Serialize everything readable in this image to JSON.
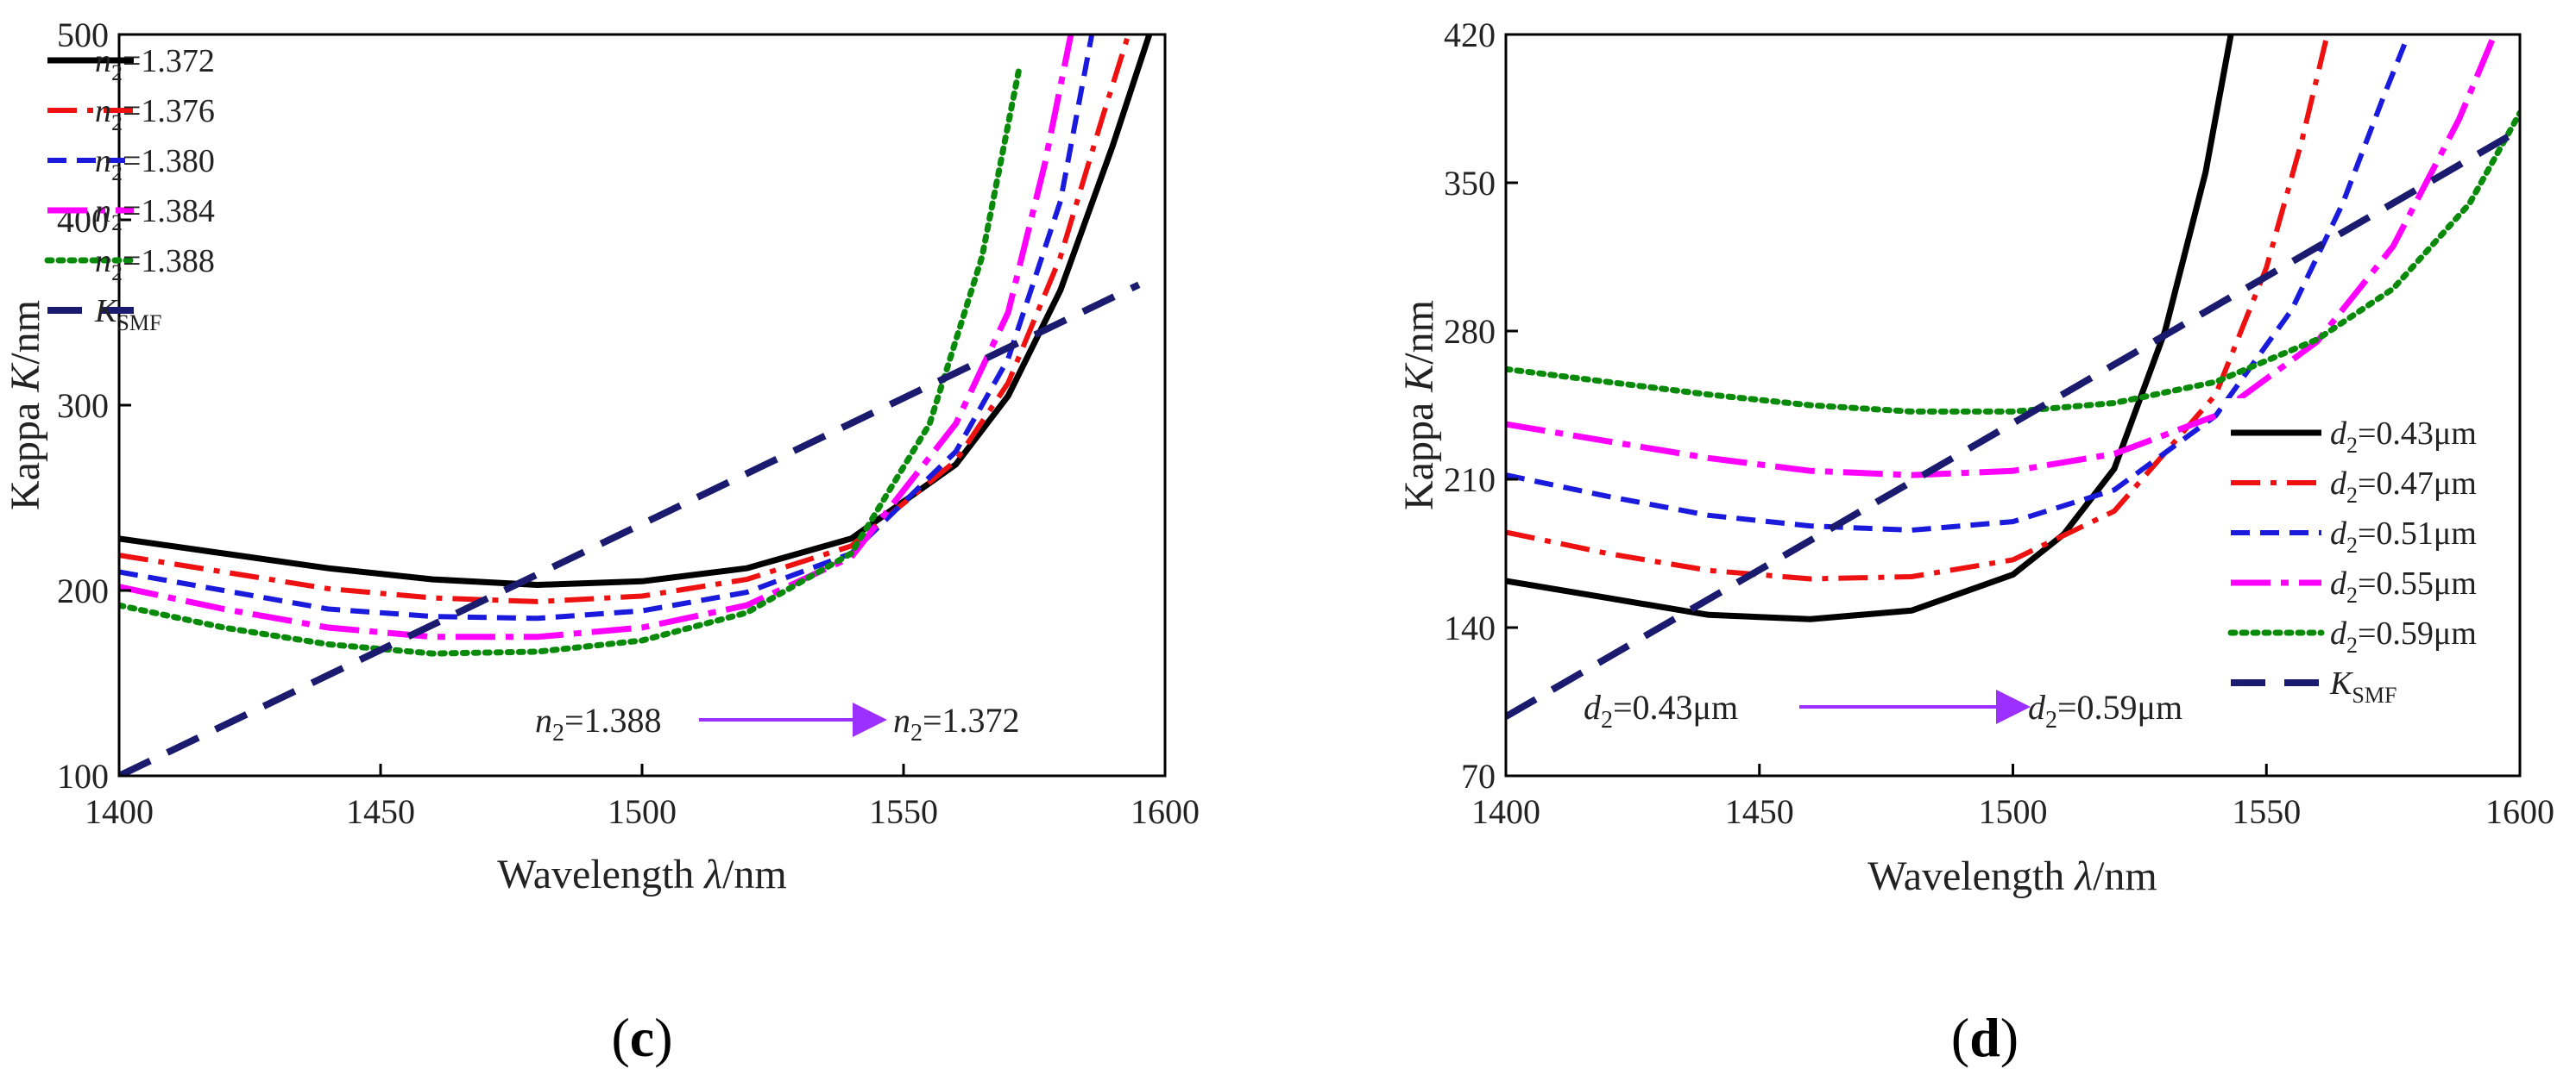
{
  "figure": {
    "panels": [
      {
        "label": "c",
        "note": {
          "from": "=1.388",
          "to": "=1.372",
          "symbol": "n",
          "sub": "2"
        }
      },
      {
        "label": "d",
        "note": {
          "from": "=0.43μm",
          "to": "=0.59μm",
          "symbol": "d",
          "sub": "2"
        }
      }
    ]
  },
  "colors": {
    "black": "#000000",
    "red": "#ee1111",
    "blue": "#1a1adc",
    "magenta": "#ff00ff",
    "green": "#0a8a0a",
    "navy": "#1a1a6e",
    "arrow": "#9b30ff"
  },
  "chart_data": [
    {
      "type": "line",
      "title": "",
      "xlabel": "Wavelength λ/nm",
      "ylabel": "Kappa K/nm",
      "xlim": [
        1400,
        1600
      ],
      "ylim": [
        100,
        500
      ],
      "xticks": [
        1400,
        1450,
        1500,
        1550,
        1600
      ],
      "yticks": [
        100,
        200,
        300,
        400,
        500
      ],
      "legend_position": "top-left",
      "series": [
        {
          "name": "n2=1.372",
          "symbol": "n",
          "sub": "2",
          "value": "=1.372",
          "color": "#000000",
          "style": "solid",
          "x": [
            1400,
            1420,
            1440,
            1460,
            1480,
            1500,
            1520,
            1540,
            1560,
            1570,
            1580,
            1590,
            1597
          ],
          "y": [
            228,
            220,
            212,
            206,
            203,
            205,
            212,
            228,
            268,
            305,
            362,
            440,
            500
          ]
        },
        {
          "name": "n2=1.376",
          "symbol": "n",
          "sub": "2",
          "value": "=1.376",
          "color": "#ee1111",
          "style": "dashdot",
          "x": [
            1400,
            1420,
            1440,
            1460,
            1480,
            1500,
            1520,
            1540,
            1560,
            1570,
            1580,
            1588,
            1593
          ],
          "y": [
            219,
            210,
            201,
            196,
            194,
            197,
            206,
            224,
            270,
            312,
            380,
            455,
            500
          ]
        },
        {
          "name": "n2=1.380",
          "symbol": "n",
          "sub": "2",
          "value": "=1.380",
          "color": "#1a1adc",
          "style": "dash",
          "x": [
            1400,
            1420,
            1440,
            1460,
            1480,
            1500,
            1520,
            1540,
            1560,
            1570,
            1580,
            1586
          ],
          "y": [
            210,
            200,
            190,
            186,
            185,
            189,
            199,
            220,
            275,
            325,
            410,
            500
          ]
        },
        {
          "name": "n2=1.384",
          "symbol": "n",
          "sub": "2",
          "value": "=1.384",
          "color": "#ff00ff",
          "style": "longdashdot",
          "x": [
            1400,
            1420,
            1440,
            1460,
            1480,
            1500,
            1520,
            1540,
            1560,
            1570,
            1577,
            1582
          ],
          "y": [
            202,
            190,
            180,
            175,
            175,
            180,
            192,
            218,
            290,
            350,
            430,
            500
          ]
        },
        {
          "name": "n2=1.388",
          "symbol": "n",
          "sub": "2",
          "value": "=1.388",
          "color": "#0a8a0a",
          "style": "dot",
          "x": [
            1400,
            1420,
            1440,
            1460,
            1480,
            1500,
            1520,
            1540,
            1555,
            1565,
            1572
          ],
          "y": [
            192,
            180,
            171,
            166,
            167,
            173,
            188,
            220,
            290,
            380,
            480
          ]
        },
        {
          "name": "KSMF",
          "symbol": "K",
          "sub": "SMF",
          "value": "",
          "color": "#1a1a6e",
          "style": "longdash",
          "x": [
            1400,
            1595
          ],
          "y": [
            100,
            365
          ]
        }
      ]
    },
    {
      "type": "line",
      "title": "",
      "xlabel": "Wavelength λ/nm",
      "ylabel": "Kappa K/nm",
      "xlim": [
        1400,
        1600
      ],
      "ylim": [
        70,
        420
      ],
      "xticks": [
        1400,
        1450,
        1500,
        1550,
        1600
      ],
      "yticks": [
        70,
        140,
        210,
        280,
        350,
        420
      ],
      "legend_position": "right",
      "series": [
        {
          "name": "d2=0.43μm",
          "symbol": "d",
          "sub": "2",
          "value": "=0.43μm",
          "color": "#000000",
          "style": "solid",
          "x": [
            1400,
            1420,
            1440,
            1460,
            1480,
            1500,
            1510,
            1520,
            1530,
            1538,
            1543
          ],
          "y": [
            162,
            154,
            146,
            144,
            148,
            165,
            184,
            215,
            280,
            355,
            420
          ]
        },
        {
          "name": "d2=0.47μm",
          "symbol": "d",
          "sub": "2",
          "value": "=0.47μm",
          "color": "#ee1111",
          "style": "dashdot",
          "x": [
            1400,
            1420,
            1440,
            1460,
            1480,
            1500,
            1520,
            1540,
            1550,
            1557,
            1562
          ],
          "y": [
            185,
            175,
            167,
            163,
            164,
            172,
            195,
            250,
            310,
            370,
            420
          ]
        },
        {
          "name": "d2=0.51μm",
          "symbol": "d",
          "sub": "2",
          "value": "=0.51μm",
          "color": "#1a1adc",
          "style": "dash",
          "x": [
            1400,
            1420,
            1440,
            1460,
            1480,
            1500,
            1520,
            1540,
            1555,
            1565,
            1573,
            1578
          ],
          "y": [
            212,
            202,
            193,
            188,
            186,
            190,
            205,
            240,
            290,
            340,
            390,
            420
          ]
        },
        {
          "name": "d2=0.55μm",
          "symbol": "d",
          "sub": "2",
          "value": "=0.55μm",
          "color": "#ff00ff",
          "style": "longdashdot",
          "x": [
            1400,
            1420,
            1440,
            1460,
            1480,
            1500,
            1520,
            1540,
            1560,
            1575,
            1588,
            1595
          ],
          "y": [
            236,
            228,
            220,
            214,
            212,
            214,
            222,
            240,
            275,
            320,
            380,
            420
          ]
        },
        {
          "name": "d2=0.59μm",
          "symbol": "d",
          "sub": "2",
          "value": "=0.59μm",
          "color": "#0a8a0a",
          "style": "dot",
          "x": [
            1400,
            1420,
            1440,
            1460,
            1480,
            1500,
            1520,
            1540,
            1560,
            1575,
            1590,
            1600
          ],
          "y": [
            262,
            256,
            250,
            245,
            242,
            242,
            246,
            256,
            276,
            300,
            340,
            383
          ]
        },
        {
          "name": "KSMF",
          "symbol": "K",
          "sub": "SMF",
          "value": "",
          "color": "#1a1a6e",
          "style": "longdash",
          "x": [
            1400,
            1600
          ],
          "y": [
            98,
            375
          ]
        }
      ]
    }
  ]
}
